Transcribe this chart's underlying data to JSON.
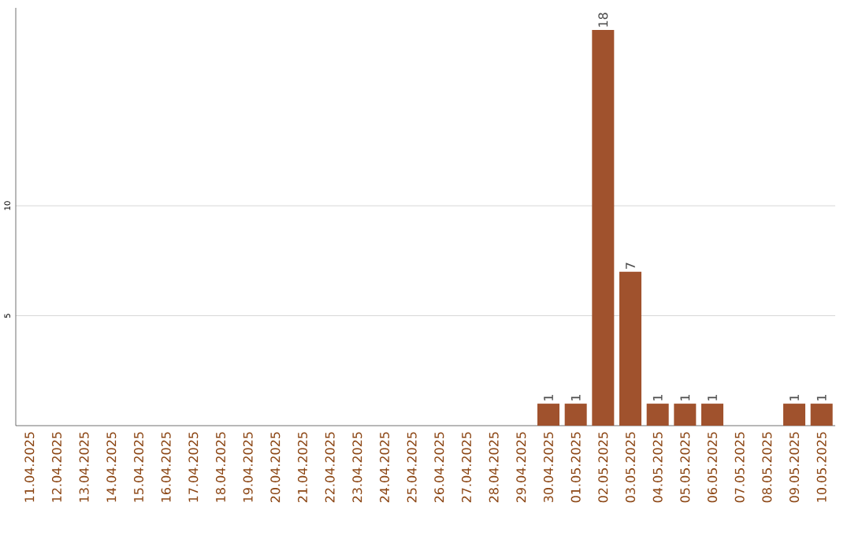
{
  "chart_data": {
    "type": "bar",
    "categories": [
      "11.04.2025",
      "12.04.2025",
      "13.04.2025",
      "14.04.2025",
      "15.04.2025",
      "16.04.2025",
      "17.04.2025",
      "18.04.2025",
      "19.04.2025",
      "20.04.2025",
      "21.04.2025",
      "22.04.2025",
      "23.04.2025",
      "24.04.2025",
      "25.04.2025",
      "26.04.2025",
      "27.04.2025",
      "28.04.2025",
      "29.04.2025",
      "30.04.2025",
      "01.05.2025",
      "02.05.2025",
      "03.05.2025",
      "04.05.2025",
      "05.05.2025",
      "06.05.2025",
      "07.05.2025",
      "08.05.2025",
      "09.05.2025",
      "10.05.2025"
    ],
    "values": [
      0,
      0,
      0,
      0,
      0,
      0,
      0,
      0,
      0,
      0,
      0,
      0,
      0,
      0,
      0,
      0,
      0,
      0,
      0,
      1,
      1,
      18,
      7,
      1,
      1,
      1,
      0,
      0,
      1,
      1
    ],
    "value_labels": [
      null,
      null,
      null,
      null,
      null,
      null,
      null,
      null,
      null,
      null,
      null,
      null,
      null,
      null,
      null,
      null,
      null,
      null,
      null,
      "1",
      "1",
      "18",
      "7",
      "1",
      "1",
      "1",
      null,
      null,
      "1",
      "1"
    ],
    "color": "#a0522d",
    "ylim": [
      0,
      19
    ],
    "yticks": [
      5,
      10
    ],
    "grid": "y"
  }
}
